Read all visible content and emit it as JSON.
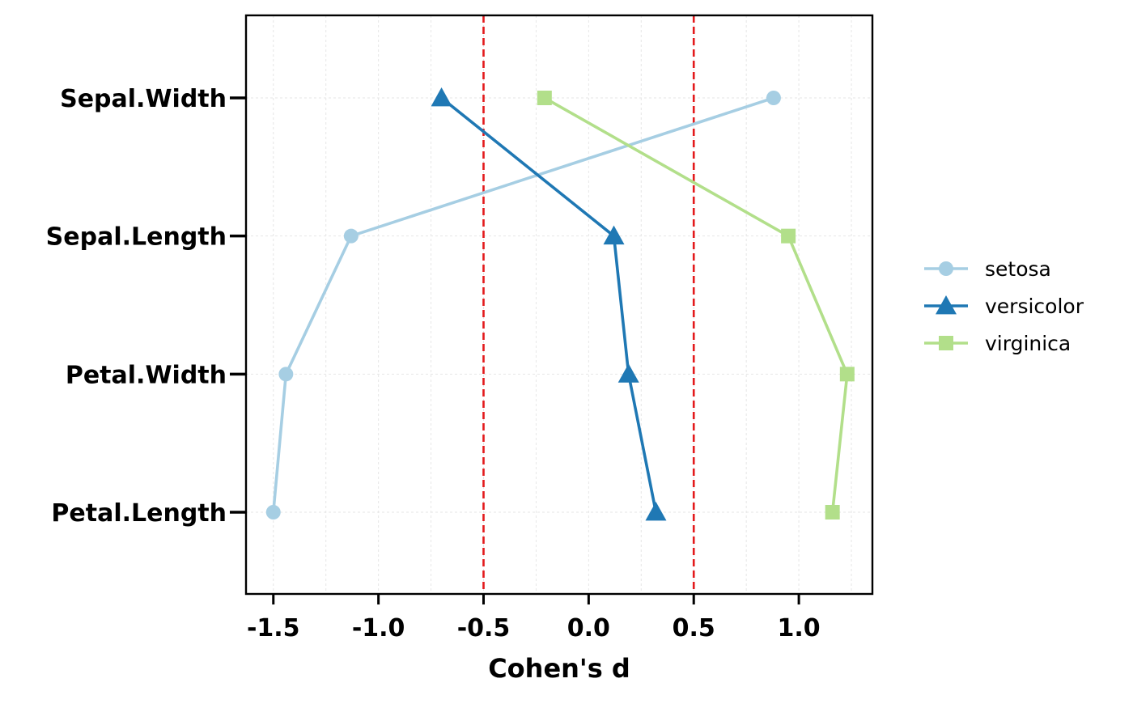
{
  "chart_data": {
    "type": "line",
    "title": "",
    "xlabel": "Cohen's d",
    "ylabel": "",
    "xlim": [
      -1.63,
      1.35
    ],
    "xticks": [
      -1.5,
      -1.0,
      -0.5,
      0.0,
      0.5,
      1.0
    ],
    "xtick_labels": [
      "-1.5",
      "-1.0",
      "-0.5",
      "0.0",
      "0.5",
      "1.0"
    ],
    "categories": [
      "Petal.Length",
      "Petal.Width",
      "Sepal.Length",
      "Sepal.Width"
    ],
    "grid": true,
    "reference_lines": [
      {
        "axis": "x",
        "value": -0.5,
        "color": "#e31a1c",
        "style": "dashed"
      },
      {
        "axis": "x",
        "value": 0.5,
        "color": "#e31a1c",
        "style": "dashed"
      }
    ],
    "legend_position": "right",
    "series": [
      {
        "name": "setosa",
        "color": "#a6cee3",
        "marker": "circle",
        "points": [
          {
            "category": "Petal.Length",
            "value": -1.5
          },
          {
            "category": "Petal.Width",
            "value": -1.44
          },
          {
            "category": "Sepal.Length",
            "value": -1.13
          },
          {
            "category": "Sepal.Width",
            "value": 0.88
          }
        ]
      },
      {
        "name": "versicolor",
        "color": "#1f78b4",
        "marker": "triangle",
        "points": [
          {
            "category": "Petal.Length",
            "value": 0.32
          },
          {
            "category": "Petal.Width",
            "value": 0.19
          },
          {
            "category": "Sepal.Length",
            "value": 0.12
          },
          {
            "category": "Sepal.Width",
            "value": -0.7
          }
        ]
      },
      {
        "name": "virginica",
        "color": "#b2df8a",
        "marker": "square",
        "points": [
          {
            "category": "Petal.Length",
            "value": 1.16
          },
          {
            "category": "Petal.Width",
            "value": 1.23
          },
          {
            "category": "Sepal.Length",
            "value": 0.95
          },
          {
            "category": "Sepal.Width",
            "value": -0.21
          }
        ]
      }
    ]
  }
}
